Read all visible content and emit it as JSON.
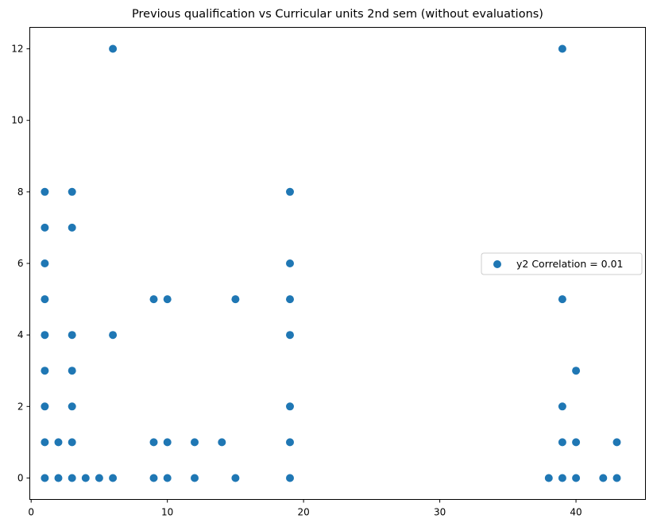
{
  "chart_data": {
    "type": "scatter",
    "title": "Previous qualification vs Curricular units 2nd sem (without evaluations)",
    "xlabel": "",
    "ylabel": "",
    "xlim": [
      -0.1,
      45.1
    ],
    "ylim": [
      -0.6,
      12.6
    ],
    "xticks": [
      0,
      10,
      20,
      30,
      40
    ],
    "yticks": [
      0,
      2,
      4,
      6,
      8,
      10,
      12
    ],
    "grid": false,
    "legend_position": "center-right",
    "series": [
      {
        "name": "y2 Correlation = 0.01",
        "color": "#1f77b4",
        "points": [
          [
            1,
            0
          ],
          [
            1,
            1
          ],
          [
            1,
            2
          ],
          [
            1,
            3
          ],
          [
            1,
            4
          ],
          [
            1,
            5
          ],
          [
            1,
            6
          ],
          [
            1,
            7
          ],
          [
            1,
            8
          ],
          [
            2,
            0
          ],
          [
            2,
            1
          ],
          [
            3,
            0
          ],
          [
            3,
            1
          ],
          [
            3,
            2
          ],
          [
            3,
            3
          ],
          [
            3,
            4
          ],
          [
            3,
            7
          ],
          [
            3,
            8
          ],
          [
            4,
            0
          ],
          [
            5,
            0
          ],
          [
            6,
            0
          ],
          [
            6,
            4
          ],
          [
            6,
            12
          ],
          [
            9,
            0
          ],
          [
            9,
            1
          ],
          [
            9,
            5
          ],
          [
            10,
            0
          ],
          [
            10,
            1
          ],
          [
            10,
            5
          ],
          [
            12,
            0
          ],
          [
            12,
            1
          ],
          [
            14,
            1
          ],
          [
            15,
            0
          ],
          [
            15,
            5
          ],
          [
            19,
            0
          ],
          [
            19,
            1
          ],
          [
            19,
            2
          ],
          [
            19,
            4
          ],
          [
            19,
            5
          ],
          [
            19,
            6
          ],
          [
            19,
            8
          ],
          [
            38,
            0
          ],
          [
            39,
            0
          ],
          [
            39,
            1
          ],
          [
            39,
            2
          ],
          [
            39,
            5
          ],
          [
            39,
            12
          ],
          [
            40,
            0
          ],
          [
            40,
            1
          ],
          [
            40,
            3
          ],
          [
            42,
            0
          ],
          [
            43,
            0
          ],
          [
            43,
            1
          ]
        ]
      }
    ]
  }
}
